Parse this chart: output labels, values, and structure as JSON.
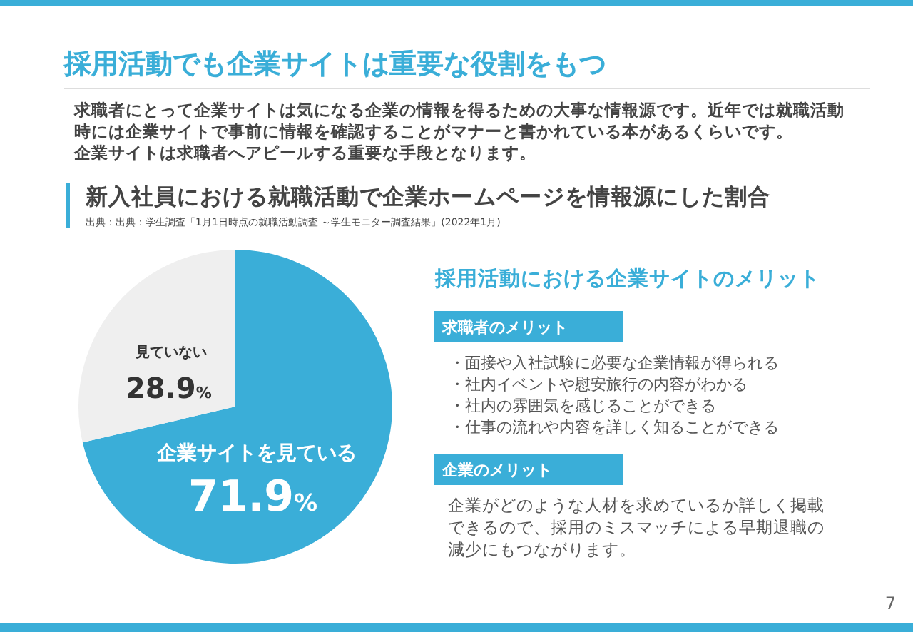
{
  "chart_data": {
    "type": "pie",
    "title": "新入社員における就職活動で企業ホームページを情報源にした割合",
    "categories": [
      "企業サイトを見ている",
      "見ていない"
    ],
    "values": [
      71.9,
      28.9
    ],
    "colors": [
      "#3aaed8",
      "#efefef"
    ],
    "value_labels": [
      "71.9%",
      "28.9%"
    ],
    "annotations": [
      "採用活動でも企業サイトは重要な役割をもつ",
      "求職者にとって企業サイトは気になる企業の情報を得るための大事な情報源です。近年では就職活動",
      "時には企業サイトで事前に情報を確認することがマナーと書かれている本があるくらいです。",
      "企業サイトは求職者へアピールする重要な手段となります。",
      "出典：出典：学生調査「1月1日時点の就職活動調査 ～学生モニター調査結果」(2022年1月)",
      "採用活動における企業サイトのメリット",
      "求職者のメリット",
      "・面接や入社試験に必要な企業情報が得られる",
      "・社内イベントや慰安旅行の内容がわかる",
      "・社内の雰囲気を感じることができる",
      "・仕事の流れや内容を詳しく知ることができる",
      "企業のメリット",
      "企業がどのような人材を求めているか詳しく掲載",
      "できるので、採用のミスマッチによる早期退職の",
      "減少にもつながります。",
      "7"
    ]
  }
}
